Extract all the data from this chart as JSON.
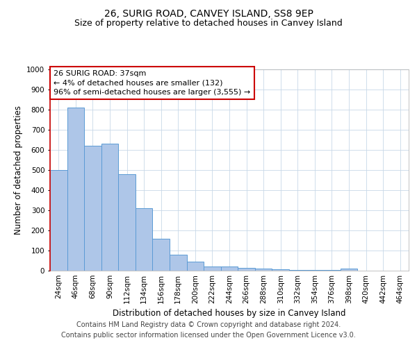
{
  "title": "26, SURIG ROAD, CANVEY ISLAND, SS8 9EP",
  "subtitle": "Size of property relative to detached houses in Canvey Island",
  "xlabel": "Distribution of detached houses by size in Canvey Island",
  "ylabel": "Number of detached properties",
  "categories": [
    "24sqm",
    "46sqm",
    "68sqm",
    "90sqm",
    "112sqm",
    "134sqm",
    "156sqm",
    "178sqm",
    "200sqm",
    "222sqm",
    "244sqm",
    "266sqm",
    "288sqm",
    "310sqm",
    "332sqm",
    "354sqm",
    "376sqm",
    "398sqm",
    "420sqm",
    "442sqm",
    "464sqm"
  ],
  "values": [
    500,
    810,
    620,
    630,
    480,
    310,
    160,
    80,
    45,
    22,
    22,
    15,
    10,
    8,
    5,
    3,
    2,
    10,
    1,
    1,
    1
  ],
  "bar_color": "#aec6e8",
  "bar_edge_color": "#5b9bd5",
  "annotation_text_line1": "26 SURIG ROAD: 37sqm",
  "annotation_text_line2": "← 4% of detached houses are smaller (132)",
  "annotation_text_line3": "96% of semi-detached houses are larger (3,555) →",
  "annotation_box_color": "#ffffff",
  "annotation_box_edge": "#cc0000",
  "vertical_line_color": "#cc0000",
  "ylim": [
    0,
    1000
  ],
  "yticks": [
    0,
    100,
    200,
    300,
    400,
    500,
    600,
    700,
    800,
    900,
    1000
  ],
  "footer1": "Contains HM Land Registry data © Crown copyright and database right 2024.",
  "footer2": "Contains public sector information licensed under the Open Government Licence v3.0.",
  "bg_color": "#ffffff",
  "grid_color": "#c8d8e8",
  "title_fontsize": 10,
  "subtitle_fontsize": 9,
  "axis_label_fontsize": 8.5,
  "tick_fontsize": 7.5,
  "annotation_fontsize": 8,
  "footer_fontsize": 7
}
